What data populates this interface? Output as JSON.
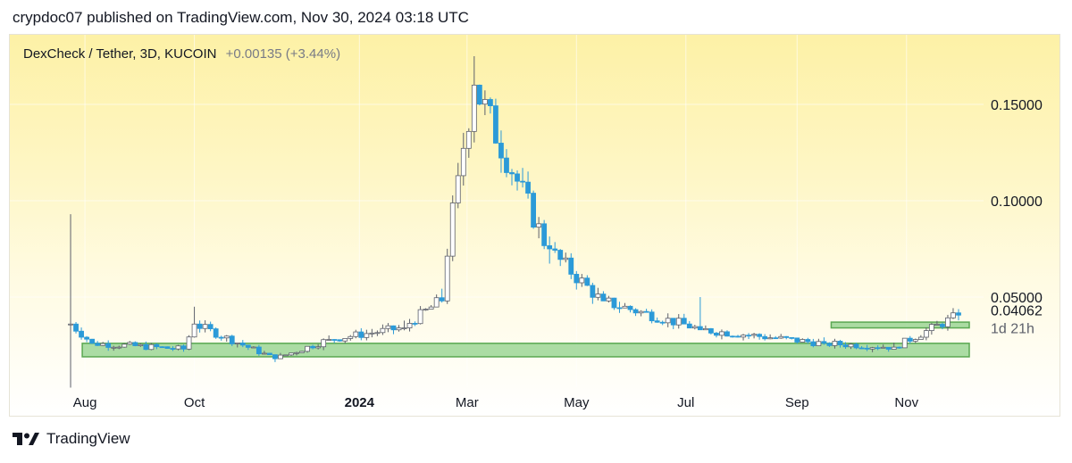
{
  "header": {
    "published_line": "crypdoc07 published on TradingView.com, Nov 30, 2024 03:18 UTC"
  },
  "symbol": {
    "title": "DexCheck / Tether, 3D, KUCOIN",
    "change": "+0.00135 (+3.44%)"
  },
  "footer": {
    "brand": "TradingView",
    "logo_icon": "tradingview-logo-icon"
  },
  "colors": {
    "up_candle_fill": "#ffffff",
    "up_candle_border": "#5d606b",
    "down_candle_fill": "#2b9ad8",
    "down_candle_border": "#2b9ad8",
    "zone_fill": "#8fd08a",
    "zone_border": "#5aa852",
    "price_text": "#131722"
  },
  "chart_data": {
    "type": "candlestick",
    "title": "DexCheck / Tether, 3D, KUCOIN",
    "x_ticks": [
      "Aug",
      "Oct",
      "2024",
      "Mar",
      "May",
      "Jul",
      "Sep",
      "Nov"
    ],
    "y_ticks": [
      "0.15000",
      "0.10000",
      "0.05000"
    ],
    "ylim": [
      0.0,
      0.17
    ],
    "last_price": "0.04062",
    "countdown": "1d 21h",
    "candles_summary": {
      "start": "2023-07",
      "end": "2024-11-30",
      "interval": "3D",
      "anchors": [
        {
          "date": "2023-07-24",
          "close": 0.036,
          "high": 0.093,
          "low": 0.003
        },
        {
          "date": "2023-08-05",
          "close": 0.026
        },
        {
          "date": "2023-09-25",
          "close": 0.023
        },
        {
          "date": "2023-10-01",
          "close": 0.036,
          "high": 0.045
        },
        {
          "date": "2023-11-15",
          "close": 0.018
        },
        {
          "date": "2023-12-15",
          "close": 0.028
        },
        {
          "date": "2024-01-25",
          "close": 0.034
        },
        {
          "date": "2024-02-15",
          "close": 0.048
        },
        {
          "date": "2024-02-25",
          "close": 0.113
        },
        {
          "date": "2024-03-05",
          "close": 0.16,
          "high": 0.175
        },
        {
          "date": "2024-04-15",
          "close": 0.075
        },
        {
          "date": "2024-05-15",
          "close": 0.048
        },
        {
          "date": "2024-07-10",
          "close": 0.033,
          "high": 0.05
        },
        {
          "date": "2024-09-15",
          "close": 0.026
        },
        {
          "date": "2024-10-25",
          "close": 0.024
        },
        {
          "date": "2024-11-30",
          "close": 0.04062
        }
      ]
    },
    "zones": [
      {
        "name": "support-zone",
        "from": "2023-08-01",
        "to": "2024-11-30",
        "low": 0.019,
        "high": 0.026
      },
      {
        "name": "resistance-zone",
        "from": "2024-09-20",
        "to": "2024-11-30",
        "low": 0.034,
        "high": 0.037
      }
    ]
  }
}
